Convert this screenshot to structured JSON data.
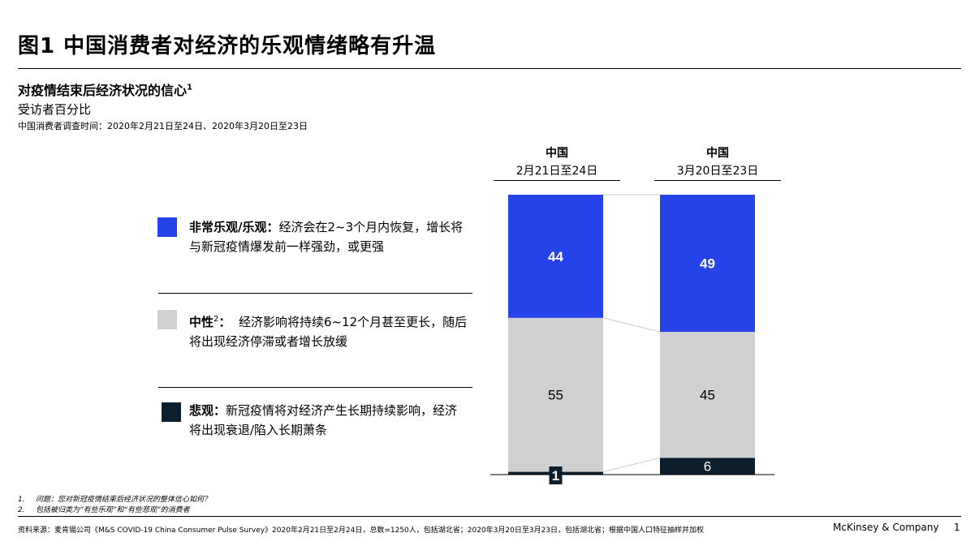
{
  "header": {
    "title": "图1  中国消费者对经济的乐观情绪略有升温",
    "subtitle": "对疫情结束后经济状况的信心",
    "subtitle_sup": "1",
    "unit": "受访者百分比",
    "survey_time": "中国消费者调查时间：2020年2月21日至24日、2020年3月20日至23日"
  },
  "legend": [
    {
      "bold": "非常乐观/乐观：",
      "text": "经济会在2~3个月内恢复，增长将与新冠疫情爆发前一样强劲，或更强",
      "sup": "",
      "color": "#2543e8"
    },
    {
      "bold": "中性",
      "sup": "2",
      "bold_after": "：",
      "text": "  经济影响将持续6~12个月甚至更长，随后将出现经济停滞或者增长放缓",
      "color": "#d0d0d0"
    },
    {
      "bold": "悲观：",
      "text": "新冠疫情将对经济产生长期持续影响，经济将出现衰退/陷入长期萧条",
      "sup": "",
      "color": "#0d1e2c"
    }
  ],
  "chart_data": {
    "type": "bar",
    "stacked": true,
    "percent": true,
    "categories": [
      "2月21日至24日",
      "3月20日至23日"
    ],
    "category_headers": [
      "中国",
      "中国"
    ],
    "series": [
      {
        "name": "悲观",
        "values": [
          1,
          6
        ],
        "color": "#0d1e2c"
      },
      {
        "name": "中性",
        "values": [
          55,
          45
        ],
        "color": "#d0d0d0"
      },
      {
        "name": "非常乐观/乐观",
        "values": [
          44,
          49
        ],
        "color": "#2543e8"
      }
    ],
    "ylim": [
      0,
      100
    ]
  },
  "footnotes": [
    {
      "num": "1.",
      "text": "问题：您对新冠疫情结束后经济状况的整体信心如何？"
    },
    {
      "num": "2.",
      "text": "包括被归类为“有些乐观”和“有些悲观”的消费者"
    }
  ],
  "footer": {
    "source": "资料来源：麦肯锡公司《M&S COVID-19 China Consumer Pulse Survey》2020年2月21日至2月24日，总数=1250人，包括湖北省；2020年3月20日至3月23日，包括湖北省；根据中国人口特征抽样并加权",
    "brand": "McKinsey & Company",
    "page_number": "1"
  }
}
